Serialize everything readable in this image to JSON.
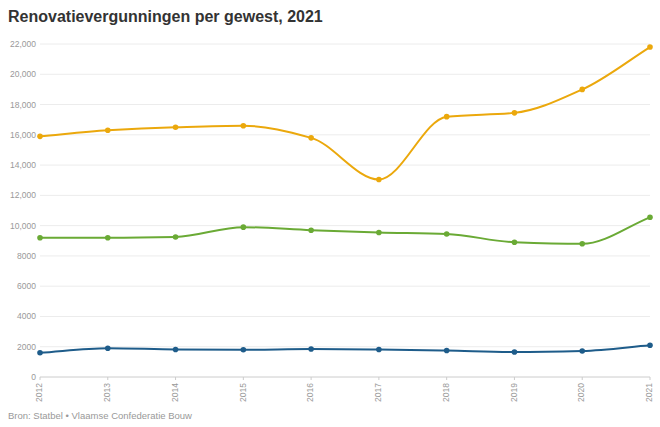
{
  "chart_data": {
    "type": "line",
    "title": "Renovatievergunningen per gewest, 2021",
    "source": "Bron: Statbel • Vlaamse Confederatie Bouw",
    "x": [
      2012,
      2013,
      2014,
      2015,
      2016,
      2017,
      2018,
      2019,
      2020,
      2021
    ],
    "xlim": [
      2012,
      2021
    ],
    "xticks": [
      2012,
      2013,
      2014,
      2015,
      2016,
      2017,
      2018,
      2019,
      2020,
      2021
    ],
    "ylim": [
      0,
      22000
    ],
    "yticks": [
      0,
      2000,
      4000,
      6000,
      8000,
      {
        "value": 10000,
        "label": "10,000"
      },
      {
        "value": 12000,
        "label": "12,000"
      },
      {
        "value": 14000,
        "label": "14,000"
      },
      {
        "value": 16000,
        "label": "16,000"
      },
      {
        "value": 18000,
        "label": "18,000"
      },
      {
        "value": 20000,
        "label": "20,000"
      },
      {
        "value": 22000,
        "label": "22,000"
      }
    ],
    "grid": true,
    "marker": "circle",
    "series": [
      {
        "color": "#eba80c",
        "values": [
          15900,
          16300,
          16500,
          16600,
          15800,
          13050,
          17200,
          17450,
          19000,
          21800
        ]
      },
      {
        "color": "#6aaa35",
        "values": [
          9200,
          9200,
          9250,
          9900,
          9700,
          9550,
          9450,
          8900,
          8800,
          10550
        ]
      },
      {
        "color": "#1e5c8a",
        "values": [
          1600,
          1900,
          1820,
          1800,
          1850,
          1820,
          1750,
          1650,
          1720,
          2100
        ]
      }
    ]
  }
}
